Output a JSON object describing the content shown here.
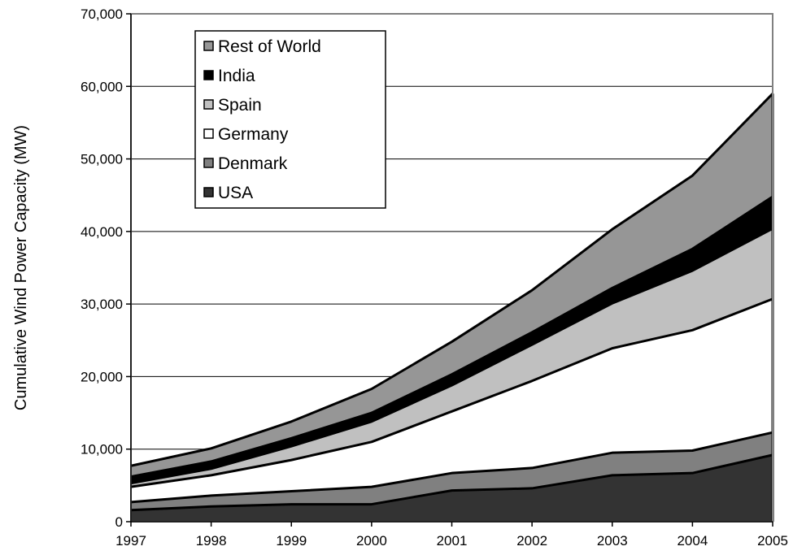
{
  "chart_data": {
    "type": "area",
    "stacked": true,
    "title": "",
    "xlabel": "",
    "ylabel": "Cumulative Wind Power Capacity (MW)",
    "categories": [
      "1997",
      "1998",
      "1999",
      "2000",
      "2001",
      "2002",
      "2003",
      "2004",
      "2005"
    ],
    "ylim": [
      0,
      70000
    ],
    "yticks": [
      0,
      10000,
      20000,
      30000,
      40000,
      50000,
      60000,
      70000
    ],
    "ytick_labels": [
      "0",
      "10,000",
      "20,000",
      "30,000",
      "40,000",
      "50,000",
      "60,000",
      "70,000"
    ],
    "grid": true,
    "legend_position": "top-left",
    "series": [
      {
        "name": "USA",
        "color": "#333333",
        "values": [
          1600,
          2100,
          2400,
          2400,
          4300,
          4600,
          6400,
          6700,
          9200
        ]
      },
      {
        "name": "Denmark",
        "color": "#808080",
        "values": [
          1100,
          1500,
          1800,
          2400,
          2400,
          2800,
          3100,
          3100,
          3100
        ]
      },
      {
        "name": "Germany",
        "color": "#ffffff",
        "values": [
          2100,
          2800,
          4300,
          6200,
          8500,
          12000,
          14400,
          16600,
          18400
        ]
      },
      {
        "name": "Spain",
        "color": "#c0c0c0",
        "values": [
          500,
          900,
          1900,
          2800,
          3600,
          5000,
          6200,
          8200,
          9700
        ]
      },
      {
        "name": "India",
        "color": "#000000",
        "values": [
          900,
          1000,
          1100,
          1200,
          1500,
          1700,
          2100,
          3000,
          4400
        ]
      },
      {
        "name": "Rest of World",
        "color": "#969696",
        "values": [
          1500,
          1800,
          2300,
          3300,
          4500,
          5800,
          8100,
          10100,
          14200
        ]
      }
    ],
    "legend_order": [
      "Rest of World",
      "India",
      "Spain",
      "Germany",
      "Denmark",
      "USA"
    ]
  }
}
